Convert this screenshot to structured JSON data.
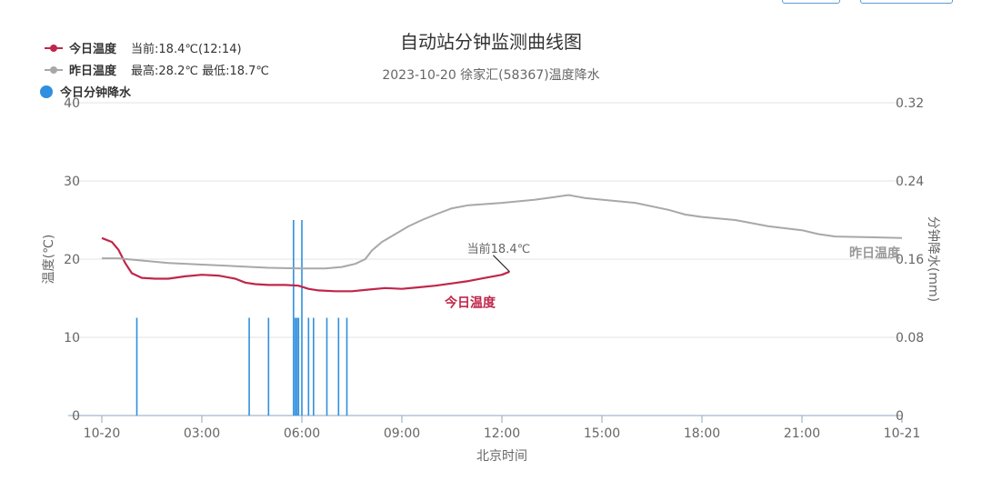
{
  "chart_data": {
    "type": "line",
    "title": "自动站分钟监测曲线图",
    "subtitle": "2023-10-20 徐家汇(58367)温度降水",
    "xlabel": "北京时间",
    "ylabel_left": "温度(℃)",
    "ylabel_right": "分钟降水(mm)",
    "x_ticks": [
      "10-20",
      "03:00",
      "06:00",
      "09:00",
      "12:00",
      "15:00",
      "18:00",
      "21:00",
      "10-21"
    ],
    "y_left_ticks": [
      "0",
      "10",
      "20",
      "30",
      "40"
    ],
    "y_right_ticks": [
      "0",
      "0.08",
      "0.16",
      "0.24",
      "0.32"
    ],
    "y_left_range": [
      0,
      40
    ],
    "y_right_range": [
      0,
      0.32
    ],
    "x_range_hours": [
      0,
      24
    ],
    "legend": [
      {
        "name": "今日温度",
        "info": "当前:18.4℃(12:14)",
        "color": "#c0264a"
      },
      {
        "name": "昨日温度",
        "info": "最高:28.2℃ 最低:18.7℃",
        "color": "#a8a8a8"
      },
      {
        "name": "今日分钟降水",
        "info": "",
        "color": "#2f8fe0"
      }
    ],
    "series": [
      {
        "name": "今日温度",
        "axis": "left",
        "color": "#c0264a",
        "points": [
          [
            0,
            22.7
          ],
          [
            0.3,
            22.2
          ],
          [
            0.5,
            21.2
          ],
          [
            0.7,
            19.5
          ],
          [
            0.9,
            18.2
          ],
          [
            1.2,
            17.6
          ],
          [
            1.6,
            17.5
          ],
          [
            2,
            17.5
          ],
          [
            2.5,
            17.8
          ],
          [
            3,
            18
          ],
          [
            3.5,
            17.9
          ],
          [
            4,
            17.5
          ],
          [
            4.3,
            17
          ],
          [
            4.6,
            16.8
          ],
          [
            5,
            16.7
          ],
          [
            5.5,
            16.7
          ],
          [
            5.9,
            16.6
          ],
          [
            6.2,
            16.2
          ],
          [
            6.5,
            16
          ],
          [
            7,
            15.9
          ],
          [
            7.5,
            15.9
          ],
          [
            8,
            16.1
          ],
          [
            8.5,
            16.3
          ],
          [
            9,
            16.2
          ],
          [
            9.5,
            16.4
          ],
          [
            10,
            16.6
          ],
          [
            10.5,
            16.9
          ],
          [
            11,
            17.2
          ],
          [
            11.5,
            17.6
          ],
          [
            12,
            18
          ],
          [
            12.23,
            18.4
          ]
        ],
        "end_label": "今日温度"
      },
      {
        "name": "昨日温度",
        "axis": "left",
        "color": "#a8a8a8",
        "points": [
          [
            0,
            20.1
          ],
          [
            0.5,
            20.1
          ],
          [
            1,
            19.9
          ],
          [
            2,
            19.5
          ],
          [
            3,
            19.3
          ],
          [
            4,
            19.1
          ],
          [
            5,
            18.9
          ],
          [
            6,
            18.8
          ],
          [
            6.7,
            18.8
          ],
          [
            7.2,
            19
          ],
          [
            7.6,
            19.4
          ],
          [
            7.9,
            20
          ],
          [
            8.1,
            21.1
          ],
          [
            8.4,
            22.2
          ],
          [
            8.8,
            23.2
          ],
          [
            9.2,
            24.2
          ],
          [
            9.6,
            25
          ],
          [
            10,
            25.7
          ],
          [
            10.5,
            26.5
          ],
          [
            11,
            26.9
          ],
          [
            12,
            27.2
          ],
          [
            13,
            27.6
          ],
          [
            13.5,
            27.9
          ],
          [
            14,
            28.2
          ],
          [
            14.5,
            27.8
          ],
          [
            15,
            27.6
          ],
          [
            16,
            27.2
          ],
          [
            17,
            26.3
          ],
          [
            17.5,
            25.7
          ],
          [
            18,
            25.4
          ],
          [
            19,
            25
          ],
          [
            20,
            24.2
          ],
          [
            21,
            23.7
          ],
          [
            21.5,
            23.2
          ],
          [
            22,
            22.9
          ],
          [
            23,
            22.8
          ],
          [
            24,
            22.7
          ]
        ],
        "end_label": "昨日温度"
      }
    ],
    "precip": {
      "name": "今日分钟降水",
      "axis": "right",
      "color": "#2f8fe0",
      "bars": [
        [
          1.05,
          0.1
        ],
        [
          4.42,
          0.1
        ],
        [
          5.0,
          0.1
        ],
        [
          5.75,
          0.2
        ],
        [
          5.8,
          0.1
        ],
        [
          5.85,
          0.1
        ],
        [
          5.9,
          0.1
        ],
        [
          6.0,
          0.2
        ],
        [
          6.2,
          0.1
        ],
        [
          6.35,
          0.1
        ],
        [
          6.75,
          0.1
        ],
        [
          7.1,
          0.1
        ],
        [
          7.35,
          0.1
        ]
      ]
    },
    "annotation": {
      "text": "当前18.4℃",
      "at": [
        12.23,
        18.4
      ]
    },
    "grid": "horizontal",
    "legend_position": "top-left"
  }
}
